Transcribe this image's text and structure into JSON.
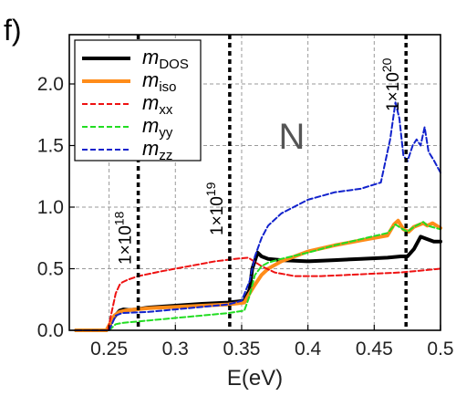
{
  "panel_label": "f)",
  "chart_data": {
    "type": "line",
    "xlabel": "E(eV)",
    "ylabel": "",
    "xlim": [
      0.22,
      0.5
    ],
    "ylim": [
      0.0,
      2.4
    ],
    "xticks": [
      0.25,
      0.3,
      0.35,
      0.4,
      0.45,
      0.5
    ],
    "xtick_labels": [
      "0.25",
      "0.3",
      "0.35",
      "0.4",
      "0.45",
      "0.5"
    ],
    "yticks": [
      0.0,
      0.5,
      1.0,
      1.5,
      2.0
    ],
    "ytick_labels": [
      "0.0",
      "0.5",
      "1.0",
      "1.5",
      "2.0"
    ],
    "grid": true,
    "legend_position": "top-left",
    "annotation": "N",
    "vertical_lines": [
      {
        "x": 0.272,
        "label_base": "1×10",
        "label_exp": "18"
      },
      {
        "x": 0.341,
        "label_base": "1×10",
        "label_exp": "19"
      },
      {
        "x": 0.474,
        "label_base": "1×10",
        "label_exp": "20"
      }
    ],
    "series": [
      {
        "name": "m_DOS",
        "legend_base": "m",
        "legend_sub": "DOS",
        "color": "#000000",
        "dash": "solid",
        "width": 4,
        "x": [
          0.225,
          0.248,
          0.254,
          0.258,
          0.261,
          0.265,
          0.27,
          0.28,
          0.3,
          0.32,
          0.34,
          0.352,
          0.356,
          0.358,
          0.362,
          0.365,
          0.37,
          0.38,
          0.4,
          0.42,
          0.44,
          0.46,
          0.47,
          0.475,
          0.48,
          0.485,
          0.49,
          0.495,
          0.5
        ],
        "y": [
          0.0,
          0.0,
          0.11,
          0.16,
          0.17,
          0.165,
          0.17,
          0.185,
          0.2,
          0.215,
          0.225,
          0.24,
          0.33,
          0.5,
          0.63,
          0.6,
          0.58,
          0.57,
          0.56,
          0.57,
          0.58,
          0.59,
          0.6,
          0.6,
          0.66,
          0.76,
          0.74,
          0.72,
          0.72
        ]
      },
      {
        "name": "m_iso",
        "legend_base": "m",
        "legend_sub": "iso",
        "color": "#ff8c1a",
        "dash": "solid",
        "width": 4,
        "x": [
          0.225,
          0.248,
          0.254,
          0.258,
          0.262,
          0.27,
          0.28,
          0.3,
          0.32,
          0.34,
          0.352,
          0.356,
          0.36,
          0.365,
          0.37,
          0.38,
          0.4,
          0.42,
          0.44,
          0.46,
          0.465,
          0.468,
          0.472,
          0.476,
          0.48,
          0.487,
          0.49,
          0.494,
          0.5
        ],
        "y": [
          0.0,
          0.0,
          0.12,
          0.15,
          0.16,
          0.17,
          0.18,
          0.19,
          0.2,
          0.21,
          0.225,
          0.3,
          0.37,
          0.45,
          0.5,
          0.56,
          0.64,
          0.69,
          0.73,
          0.77,
          0.86,
          0.89,
          0.82,
          0.8,
          0.84,
          0.87,
          0.85,
          0.87,
          0.83
        ]
      },
      {
        "name": "m_xx",
        "legend_base": "m",
        "legend_sub": "xx",
        "color": "#ee1111",
        "dash": "dashed",
        "width": 2,
        "x": [
          0.225,
          0.249,
          0.252,
          0.255,
          0.258,
          0.26,
          0.264,
          0.272,
          0.29,
          0.31,
          0.33,
          0.345,
          0.355,
          0.365,
          0.375,
          0.39,
          0.41,
          0.43,
          0.45,
          0.47,
          0.49,
          0.5
        ],
        "y": [
          0.0,
          0.0,
          0.15,
          0.3,
          0.37,
          0.39,
          0.41,
          0.44,
          0.48,
          0.52,
          0.56,
          0.58,
          0.59,
          0.52,
          0.47,
          0.44,
          0.44,
          0.45,
          0.46,
          0.47,
          0.49,
          0.5
        ]
      },
      {
        "name": "m_yy",
        "legend_base": "m",
        "legend_sub": "yy",
        "color": "#22dd22",
        "dash": "dashed",
        "width": 2,
        "x": [
          0.225,
          0.25,
          0.255,
          0.26,
          0.28,
          0.3,
          0.32,
          0.34,
          0.352,
          0.356,
          0.36,
          0.365,
          0.37,
          0.38,
          0.4,
          0.42,
          0.44,
          0.46,
          0.466,
          0.47,
          0.475,
          0.48,
          0.487,
          0.49,
          0.5
        ],
        "y": [
          0.0,
          0.0,
          0.05,
          0.06,
          0.08,
          0.1,
          0.12,
          0.14,
          0.16,
          0.28,
          0.45,
          0.52,
          0.55,
          0.58,
          0.63,
          0.69,
          0.74,
          0.79,
          0.86,
          0.83,
          0.8,
          0.84,
          0.88,
          0.85,
          0.82
        ]
      },
      {
        "name": "m_zz",
        "legend_base": "m",
        "legend_sub": "zz",
        "color": "#1122cc",
        "dash": "dashed",
        "width": 2,
        "x": [
          0.225,
          0.25,
          0.255,
          0.26,
          0.28,
          0.3,
          0.32,
          0.34,
          0.35,
          0.356,
          0.36,
          0.365,
          0.37,
          0.38,
          0.4,
          0.42,
          0.44,
          0.455,
          0.462,
          0.466,
          0.469,
          0.472,
          0.475,
          0.479,
          0.482,
          0.485,
          0.488,
          0.491,
          0.495,
          0.5
        ],
        "y": [
          0.0,
          0.0,
          0.12,
          0.14,
          0.15,
          0.17,
          0.19,
          0.21,
          0.24,
          0.4,
          0.6,
          0.75,
          0.85,
          0.95,
          1.06,
          1.12,
          1.15,
          1.2,
          1.55,
          1.85,
          1.72,
          1.42,
          1.37,
          1.5,
          1.55,
          1.5,
          1.65,
          1.45,
          1.38,
          1.28
        ]
      }
    ]
  }
}
